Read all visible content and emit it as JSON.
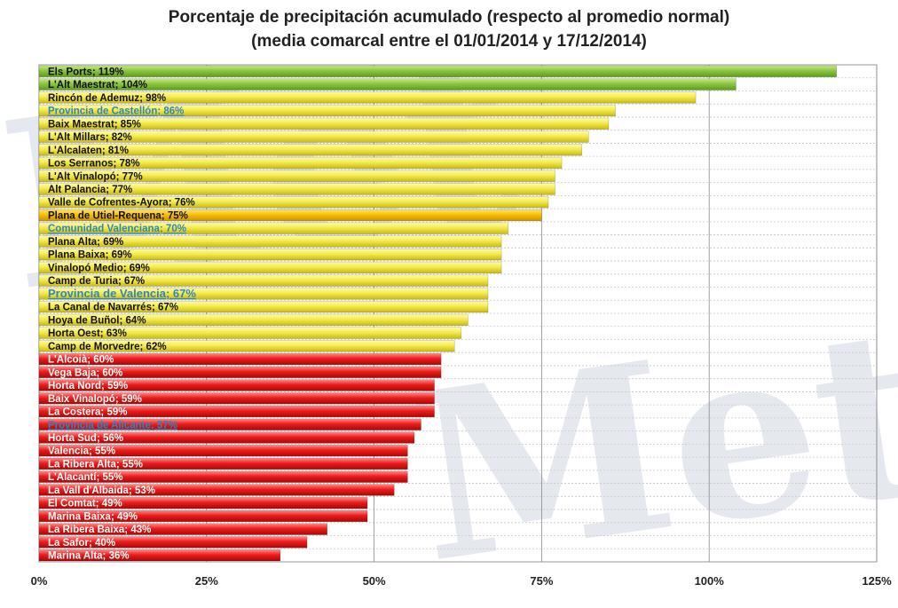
{
  "chart_data": {
    "type": "bar",
    "orientation": "horizontal",
    "title": "Porcentaje de precipitación acumulado (respecto al promedio normal)",
    "subtitle": "(media comarcal entre el 01/01/2014 y 17/12/2014)",
    "xlabel": "",
    "ylabel": "",
    "xlim": [
      0,
      125
    ],
    "x_ticks": [
      "0%",
      "25%",
      "50%",
      "75%",
      "100%",
      "125%"
    ],
    "grid": true,
    "legend": "none",
    "colors": {
      "green": "#8cc63f",
      "yellow": "#f4ec4a",
      "orange": "#f6c200",
      "red": "#ee1c1c",
      "highlight_text": "#2e86c1",
      "normal_text": "#111111",
      "red_bar_text": "#ffffff"
    },
    "bars": [
      {
        "label": "Els Ports; 119%",
        "value": 119,
        "band": "green",
        "highlight": false
      },
      {
        "label": "L'Alt Maestrat; 104%",
        "value": 104,
        "band": "green",
        "highlight": false
      },
      {
        "label": "Rincón de Ademuz; 98%",
        "value": 98,
        "band": "yellow",
        "highlight": false
      },
      {
        "label": "Provincia de Castellón; 86%",
        "value": 86,
        "band": "yellow",
        "highlight": true
      },
      {
        "label": "Baix Maestrat; 85%",
        "value": 85,
        "band": "yellow",
        "highlight": false
      },
      {
        "label": "L'Alt Millars; 82%",
        "value": 82,
        "band": "yellow",
        "highlight": false
      },
      {
        "label": "L'Alcalaten; 81%",
        "value": 81,
        "band": "yellow",
        "highlight": false
      },
      {
        "label": "Los Serranos; 78%",
        "value": 78,
        "band": "yellow",
        "highlight": false
      },
      {
        "label": "L'Alt Vinalopó; 77%",
        "value": 77,
        "band": "yellow",
        "highlight": false
      },
      {
        "label": "Alt Palancia; 77%",
        "value": 77,
        "band": "yellow",
        "highlight": false
      },
      {
        "label": "Valle de Cofrentes-Ayora; 76%",
        "value": 76,
        "band": "yellow",
        "highlight": false
      },
      {
        "label": "Plana de Utiel-Requena; 75%",
        "value": 75,
        "band": "orange",
        "highlight": false
      },
      {
        "label": "Comunidad Valenciana; 70%",
        "value": 70,
        "band": "yellow",
        "highlight": true
      },
      {
        "label": "Plana Alta; 69%",
        "value": 69,
        "band": "yellow",
        "highlight": false
      },
      {
        "label": "Plana Baixa; 69%",
        "value": 69,
        "band": "yellow",
        "highlight": false
      },
      {
        "label": "Vinalopó Medio; 69%",
        "value": 69,
        "band": "yellow",
        "highlight": false
      },
      {
        "label": "Camp de Turia; 67%",
        "value": 67,
        "band": "yellow",
        "highlight": false
      },
      {
        "label": "Provincia de Valencia; 67%",
        "value": 67,
        "band": "yellow",
        "highlight": true
      },
      {
        "label": "La Canal de Navarrés; 67%",
        "value": 67,
        "band": "yellow",
        "highlight": false
      },
      {
        "label": "Hoya de Buñol; 64%",
        "value": 64,
        "band": "yellow",
        "highlight": false
      },
      {
        "label": "Horta Oest; 63%",
        "value": 63,
        "band": "yellow",
        "highlight": false
      },
      {
        "label": "Camp de Morvedre; 62%",
        "value": 62,
        "band": "yellow",
        "highlight": false
      },
      {
        "label": "L'Alcoià; 60%",
        "value": 60,
        "band": "red",
        "highlight": false
      },
      {
        "label": "Vega Baja; 60%",
        "value": 60,
        "band": "red",
        "highlight": false
      },
      {
        "label": "Horta Nord; 59%",
        "value": 59,
        "band": "red",
        "highlight": false
      },
      {
        "label": "Baix Vinalopó; 59%",
        "value": 59,
        "band": "red",
        "highlight": false
      },
      {
        "label": "La Costera; 59%",
        "value": 59,
        "band": "red",
        "highlight": false
      },
      {
        "label": "Provincia de Alicante; 57%",
        "value": 57,
        "band": "red",
        "highlight": true
      },
      {
        "label": "Horta Sud; 56%",
        "value": 56,
        "band": "red",
        "highlight": false
      },
      {
        "label": "Valencia; 55%",
        "value": 55,
        "band": "red",
        "highlight": false
      },
      {
        "label": "La Ribera Alta; 55%",
        "value": 55,
        "band": "red",
        "highlight": false
      },
      {
        "label": "L'Alacantí; 55%",
        "value": 55,
        "band": "red",
        "highlight": false
      },
      {
        "label": "La Vall d'Albaida; 53%",
        "value": 53,
        "band": "red",
        "highlight": false
      },
      {
        "label": "El Comtat; 49%",
        "value": 49,
        "band": "red",
        "highlight": false
      },
      {
        "label": "Marina Baixa; 49%",
        "value": 49,
        "band": "red",
        "highlight": false
      },
      {
        "label": "La Ribera Baixa; 43%",
        "value": 43,
        "band": "red",
        "highlight": false
      },
      {
        "label": "La Safor; 40%",
        "value": 40,
        "band": "red",
        "highlight": false
      },
      {
        "label": "Marina Alta; 36%",
        "value": 36,
        "band": "red",
        "highlight": false
      }
    ]
  }
}
